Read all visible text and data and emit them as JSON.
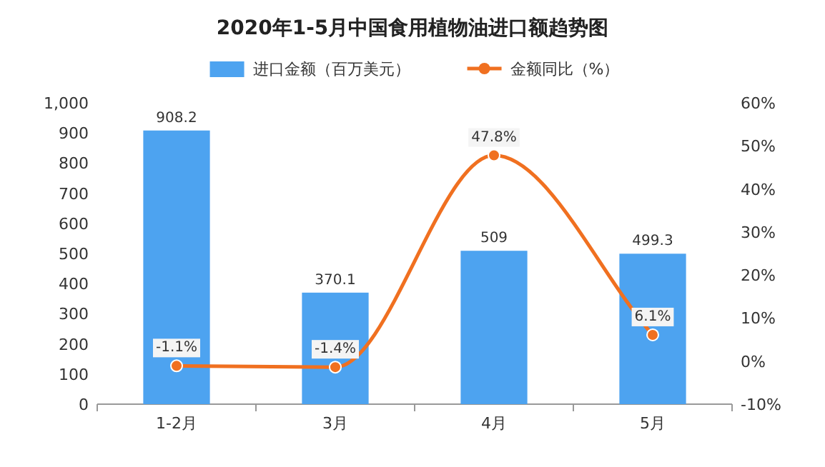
{
  "chart_data": {
    "type": "bar",
    "title": "2020年1-5月中国食用植物油进口额趋势图",
    "categories": [
      "1-2月",
      "3月",
      "4月",
      "5月"
    ],
    "series": [
      {
        "name": "进口金额（百万美元）",
        "color": "#4da3f0",
        "values": [
          908.2,
          370.1,
          509,
          499.3
        ],
        "value_labels": [
          "908.2",
          "370.1",
          "509",
          "499.3"
        ]
      },
      {
        "name": "金额同比（%）",
        "type": "line",
        "axis": "y2",
        "color": "#f07020",
        "values": [
          -1.1,
          -1.4,
          47.8,
          6.1
        ],
        "value_labels": [
          "-1.1%",
          "-1.4%",
          "47.8%",
          "6.1%"
        ]
      }
    ],
    "ylim": [
      0,
      1000
    ],
    "yticks": [
      0,
      100,
      200,
      300,
      400,
      500,
      600,
      700,
      800,
      900,
      {
        "value": 1000,
        "label": "1,000"
      }
    ],
    "y2lim": [
      -10,
      60
    ],
    "y2ticks": [
      {
        "value": -10,
        "label": "-10%"
      },
      {
        "value": 0,
        "label": "0%"
      },
      {
        "value": 10,
        "label": "10%"
      },
      {
        "value": 20,
        "label": "20%"
      },
      {
        "value": 30,
        "label": "30%"
      },
      {
        "value": 40,
        "label": "40%"
      },
      {
        "value": 50,
        "label": "50%"
      },
      {
        "value": 60,
        "label": "60%"
      }
    ],
    "legend": "top",
    "marker": "circle",
    "line_style": "solid",
    "grid": false
  }
}
